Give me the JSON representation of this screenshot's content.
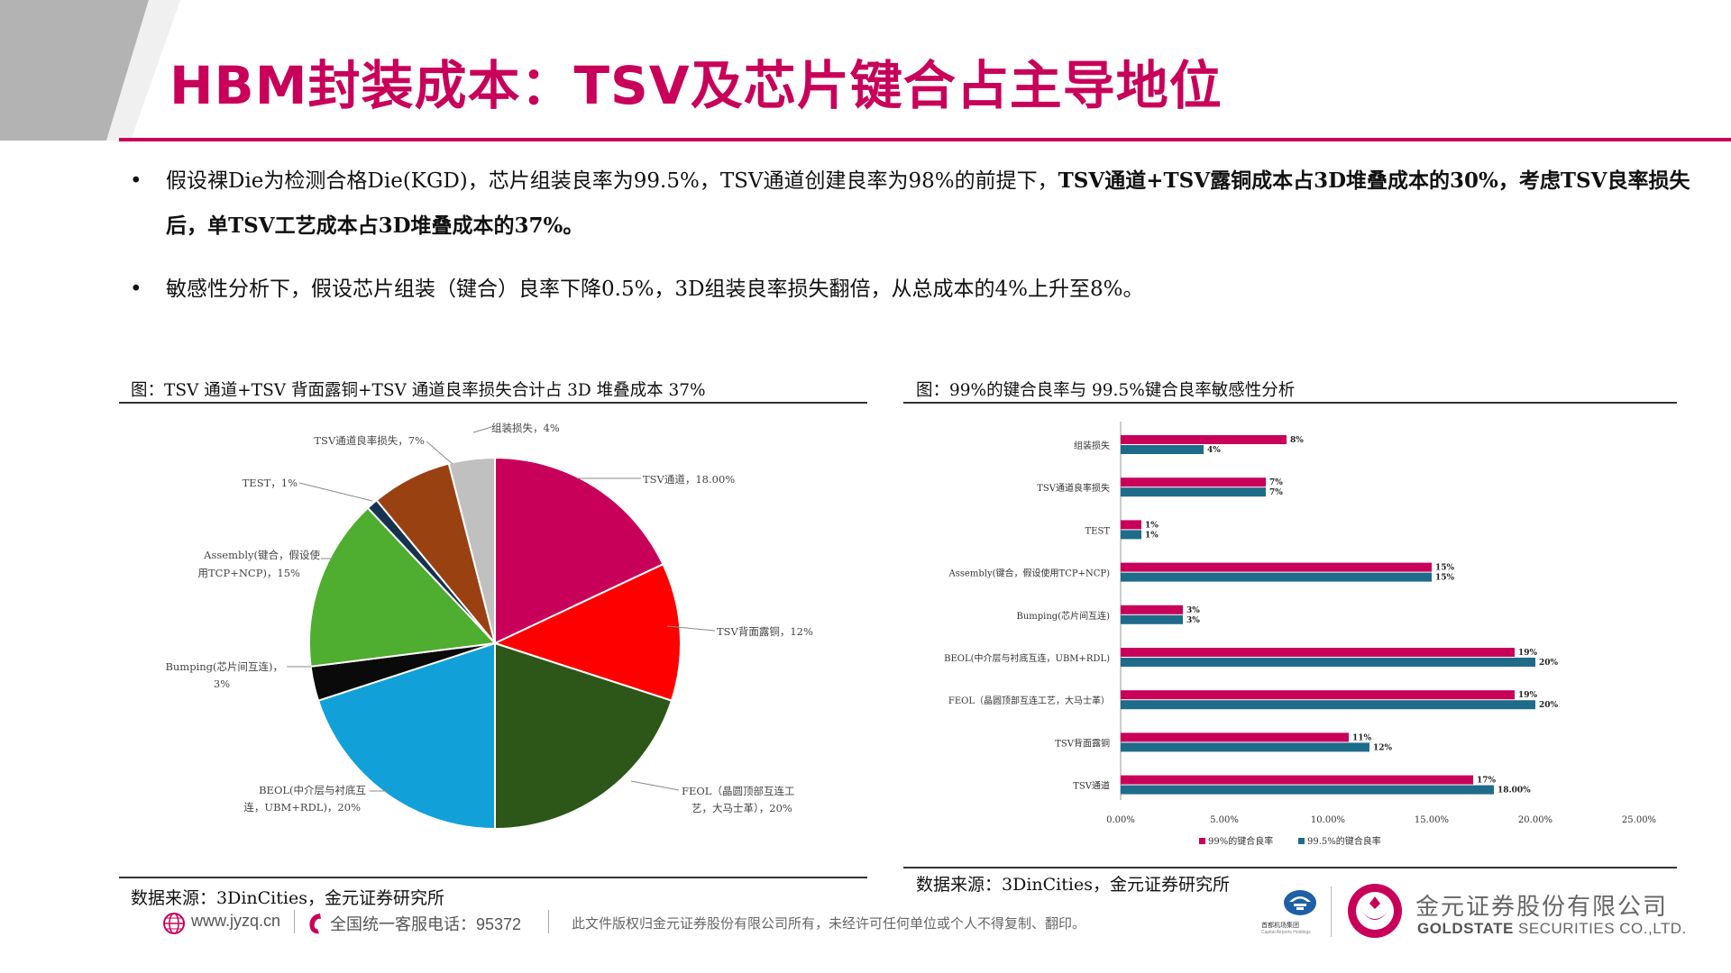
{
  "title": "HBM封装成本：TSV及芯片键合占主导地位",
  "colors": {
    "brand": "#c8005a",
    "bar_99": "#c8005a",
    "bar_995": "#1f6b8a"
  },
  "bullets": {
    "b1_normal": "假设裸Die为检测合格Die(KGD)，芯片组装良率为99.5%，TSV通道创建良率为98%的前提下，",
    "b1_bold": "TSV通道+TSV露铜成本占3D堆叠成本的30%，考虑TSV良率损失后，单TSV工艺成本占3D堆叠成本的37%。",
    "b2": "敏感性分析下，假设芯片组装（键合）良率下降0.5%，3D组装良率损失翻倍，从总成本的4%上升至8%。"
  },
  "figure_left": {
    "caption": "图：TSV 通道+TSV 背面露铜+TSV 通道良率损失合计占 3D 堆叠成本 37%",
    "source": "数据来源：3DinCities，金元证券研究所"
  },
  "figure_right": {
    "caption": "图：99%的键合良率与 99.5%键合良率敏感性分析",
    "source": "数据来源：3DinCities，金元证券研究所"
  },
  "chart_data": [
    {
      "type": "pie",
      "slices": [
        {
          "label": "TSV通道",
          "value": 18,
          "display": "TSV通道，18.00%",
          "color": "#c8005a"
        },
        {
          "label": "TSV背面露铜",
          "value": 12,
          "display": "TSV背面露铜，12%",
          "color": "#ff0000"
        },
        {
          "label": "FEOL（晶圆顶部互连工艺，大马士革）",
          "value": 20,
          "display": "FEOL（晶圆顶部互连工艺，大马士革），20%",
          "color": "#2d5718"
        },
        {
          "label": "BEOL(中介层与衬底互连，UBM+RDL)",
          "value": 20,
          "display": "BEOL(中介层与衬底互连，UBM+RDL)，20%",
          "color": "#12a0d8"
        },
        {
          "label": "Bumping(芯片间互连)",
          "value": 3,
          "display": "Bumping(芯片间互连)，3%",
          "color": "#0a0a0a"
        },
        {
          "label": "Assembly(键合，假设使用TCP+NCP)",
          "value": 15,
          "display": "Assembly(键合，假设使用TCP+NCP)，15%",
          "color": "#4fad2f"
        },
        {
          "label": "TEST",
          "value": 1,
          "display": "TEST，1%",
          "color": "#16324f"
        },
        {
          "label": "TSV通道良率损失",
          "value": 7,
          "display": "TSV通道良率损失，7%",
          "color": "#9a4112"
        },
        {
          "label": "组装损失",
          "value": 4,
          "display": "组装损失，4%",
          "color": "#c0c0c0"
        }
      ],
      "label_lines": {
        "tsv": "TSV通道，18.00%",
        "tsvback": "TSV背面露铜，12%",
        "feol_1": "FEOL（晶圆顶部互连工",
        "feol_2": "艺，大马士革），20%",
        "beol_1": "BEOL(中介层与衬底互",
        "beol_2": "连，UBM+RDL)，20%",
        "bump_1": "Bumping(芯片间互连)，",
        "bump_2": "3%",
        "asm_1": "Assembly(键合，假设使",
        "asm_2": "用TCP+NCP)，15%",
        "test": "TEST，1%",
        "loss": "TSV通道良率损失，7%",
        "asmloss": "组装损失，4%"
      }
    },
    {
      "type": "bar",
      "orientation": "horizontal",
      "categories": [
        "组装损失",
        "TSV通道良率损失",
        "TEST",
        "Assembly(键合，假设使用TCP+NCP)",
        "Bumping(芯片间互连)",
        "BEOL(中介层与衬底互连，UBM+RDL)",
        "FEOL（晶圆顶部互连工艺，大马士革）",
        "TSV背面露铜",
        "TSV通道"
      ],
      "series": [
        {
          "name": "99%的键合良率",
          "values": [
            8,
            7,
            1,
            15,
            3,
            19,
            19,
            11,
            17
          ],
          "labels": [
            "8%",
            "7%",
            "1%",
            "15%",
            "3%",
            "19%",
            "19%",
            "11%",
            "17%"
          ]
        },
        {
          "name": "99.5%的键合良率",
          "values": [
            4,
            7,
            1,
            15,
            3,
            20,
            20,
            12,
            18
          ],
          "labels": [
            "4%",
            "7%",
            "1%",
            "15%",
            "3%",
            "20%",
            "20%",
            "12%",
            "18.00%"
          ]
        }
      ],
      "xlim": [
        0,
        25
      ],
      "xticks": [
        "0.00%",
        "5.00%",
        "10.00%",
        "15.00%",
        "20.00%",
        "25.00%"
      ],
      "legend": "bottom",
      "grid": false
    }
  ],
  "footer": {
    "website": "www.jyzq.cn",
    "hotline": "全国统一客服电话：95372",
    "notice": "此文件版权归金元证券股份有限公司所有，未经许可任何单位或个人不得复制、翻印。",
    "airport_name": "首都机场集团",
    "airport_sub": "Capital Airports Holdings",
    "company_cn": "金元证券股份有限公司",
    "company_en_bold": "GOLDSTATE",
    "company_en_rest": " SECURITIES CO.,LTD.",
    "icons": [
      "globe-icon",
      "phone-icon",
      "airport-logo",
      "goldstate-logo"
    ]
  }
}
